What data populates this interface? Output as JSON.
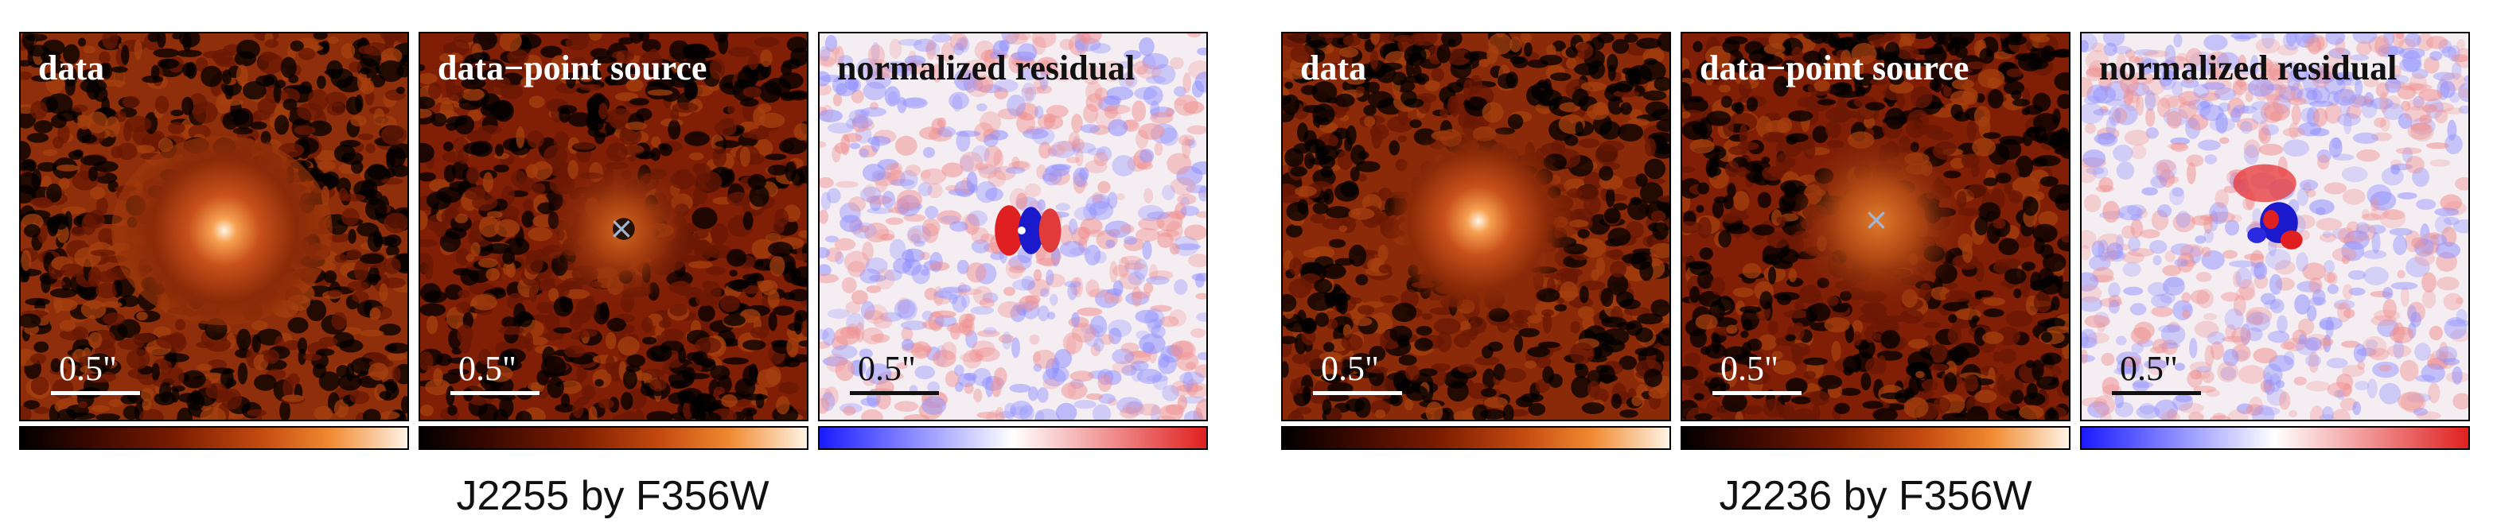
{
  "figures": [
    {
      "caption": "J2255 by F356W",
      "panels": [
        {
          "label": "data",
          "scalebar": "0.5\"",
          "colormap": "heat"
        },
        {
          "label": "data−point source",
          "scalebar": "0.5\"",
          "colormap": "heat",
          "marker": "×"
        },
        {
          "label": "normalized residual",
          "scalebar": "0.5\"",
          "colormap": "diverging"
        }
      ]
    },
    {
      "caption": "J2236 by F356W",
      "panels": [
        {
          "label": "data",
          "scalebar": "0.5\"",
          "colormap": "heat"
        },
        {
          "label": "data−point source",
          "scalebar": "0.5\"",
          "colormap": "heat",
          "marker": "×"
        },
        {
          "label": "normalized residual",
          "scalebar": "0.5\"",
          "colormap": "diverging"
        }
      ]
    }
  ],
  "colors": {
    "heat_dark": "#000000",
    "heat_mid": "#7a1c00",
    "heat_bright": "#fff4e6",
    "residual_negative": "#1a1aff",
    "residual_positive": "#e02020",
    "marker": "#9fb6d6"
  }
}
